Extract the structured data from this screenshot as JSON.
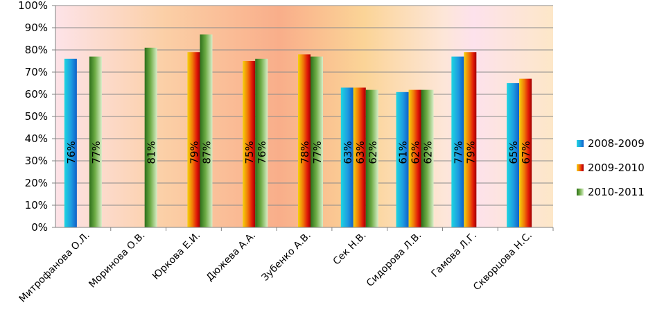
{
  "chart_data": {
    "type": "bar",
    "title": "",
    "xlabel": "",
    "ylabel": "",
    "ylim": [
      0,
      100
    ],
    "y_ticks": [
      "0%",
      "10%",
      "20%",
      "30%",
      "40%",
      "50%",
      "60%",
      "70%",
      "80%",
      "90%",
      "100%"
    ],
    "grid": "horizontal",
    "legend_position": "right",
    "categories": [
      "Митрофанова О.Л.",
      "Моринова О.В.",
      "Юркова Е.И.",
      "Дюжева А.А.",
      "Зубенко А.В.",
      "Сек Н.В.",
      "Сидорова Л.В.",
      "Гамова Л.Г.",
      "Скворцова Н.С."
    ],
    "series": [
      {
        "name": "2008-2009",
        "color": "#1ea0e0",
        "values": [
          76,
          null,
          null,
          null,
          null,
          63,
          61,
          77,
          65
        ],
        "labels": [
          "76%",
          "",
          "",
          "",
          "",
          "63%",
          "61%",
          "77%",
          "65%"
        ]
      },
      {
        "name": "2009-2010",
        "color": "#e02010",
        "values": [
          null,
          null,
          79,
          75,
          78,
          63,
          62,
          79,
          67
        ],
        "labels": [
          "",
          "",
          "79%",
          "75%",
          "78%",
          "63%",
          "62%",
          "79%",
          "67%"
        ]
      },
      {
        "name": "2010-2011",
        "color": "#5a9a30",
        "values": [
          77,
          81,
          87,
          76,
          77,
          62,
          62,
          null,
          null
        ],
        "labels": [
          "77%",
          "81%",
          "87%",
          "76%",
          "77%",
          "62%",
          "62%",
          "",
          ""
        ]
      }
    ]
  }
}
